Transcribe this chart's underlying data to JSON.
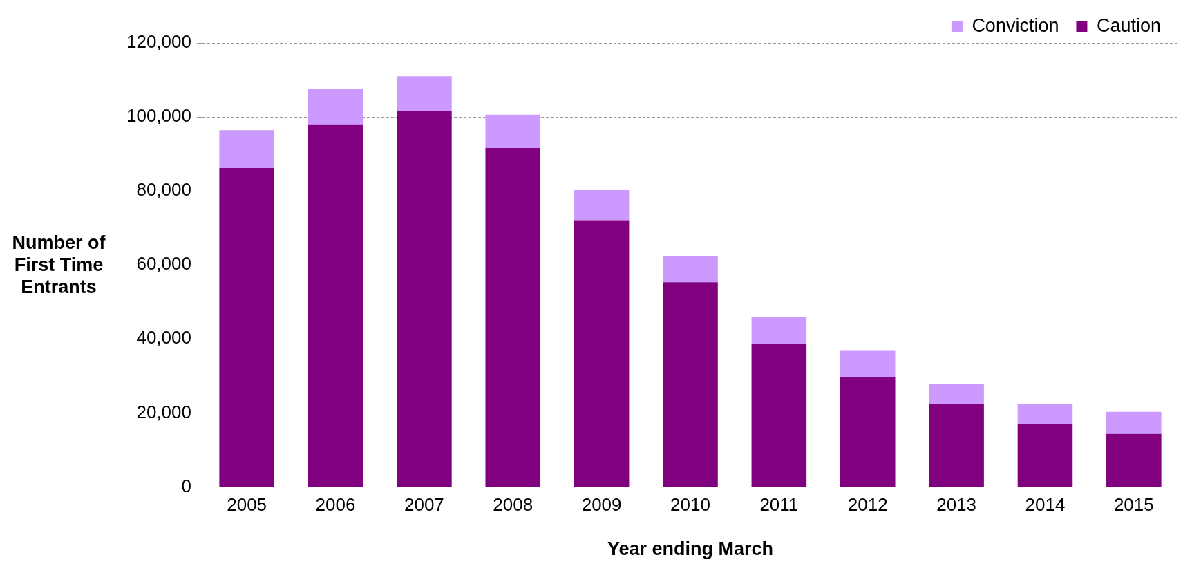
{
  "chart_data": {
    "type": "bar",
    "xlabel": "Year ending March",
    "ylabel": "Number of First Time Entrants",
    "categories": [
      "2005",
      "2006",
      "2007",
      "2008",
      "2009",
      "2010",
      "2011",
      "2012",
      "2013",
      "2014",
      "2015"
    ],
    "stacked": true,
    "series": [
      {
        "name": "Caution",
        "color": "#800080",
        "values": [
          86200,
          97800,
          101700,
          91600,
          72100,
          55300,
          38600,
          29600,
          22400,
          16900,
          14300
        ]
      },
      {
        "name": "Conviction",
        "color": "#cc99ff",
        "values": [
          10200,
          9700,
          9300,
          9000,
          8100,
          7100,
          7400,
          7200,
          5300,
          5500,
          6000
        ]
      }
    ],
    "ylim": [
      0,
      120000
    ],
    "yticks": [
      {
        "value": 0,
        "label": "0"
      },
      {
        "value": 20000,
        "label": "20,000"
      },
      {
        "value": 40000,
        "label": "40,000"
      },
      {
        "value": 60000,
        "label": "60,000"
      },
      {
        "value": 80000,
        "label": "80,000"
      },
      {
        "value": 100000,
        "label": "100,000"
      },
      {
        "value": 120000,
        "label": "120,000"
      }
    ],
    "grid": "y",
    "legend": "top right"
  }
}
